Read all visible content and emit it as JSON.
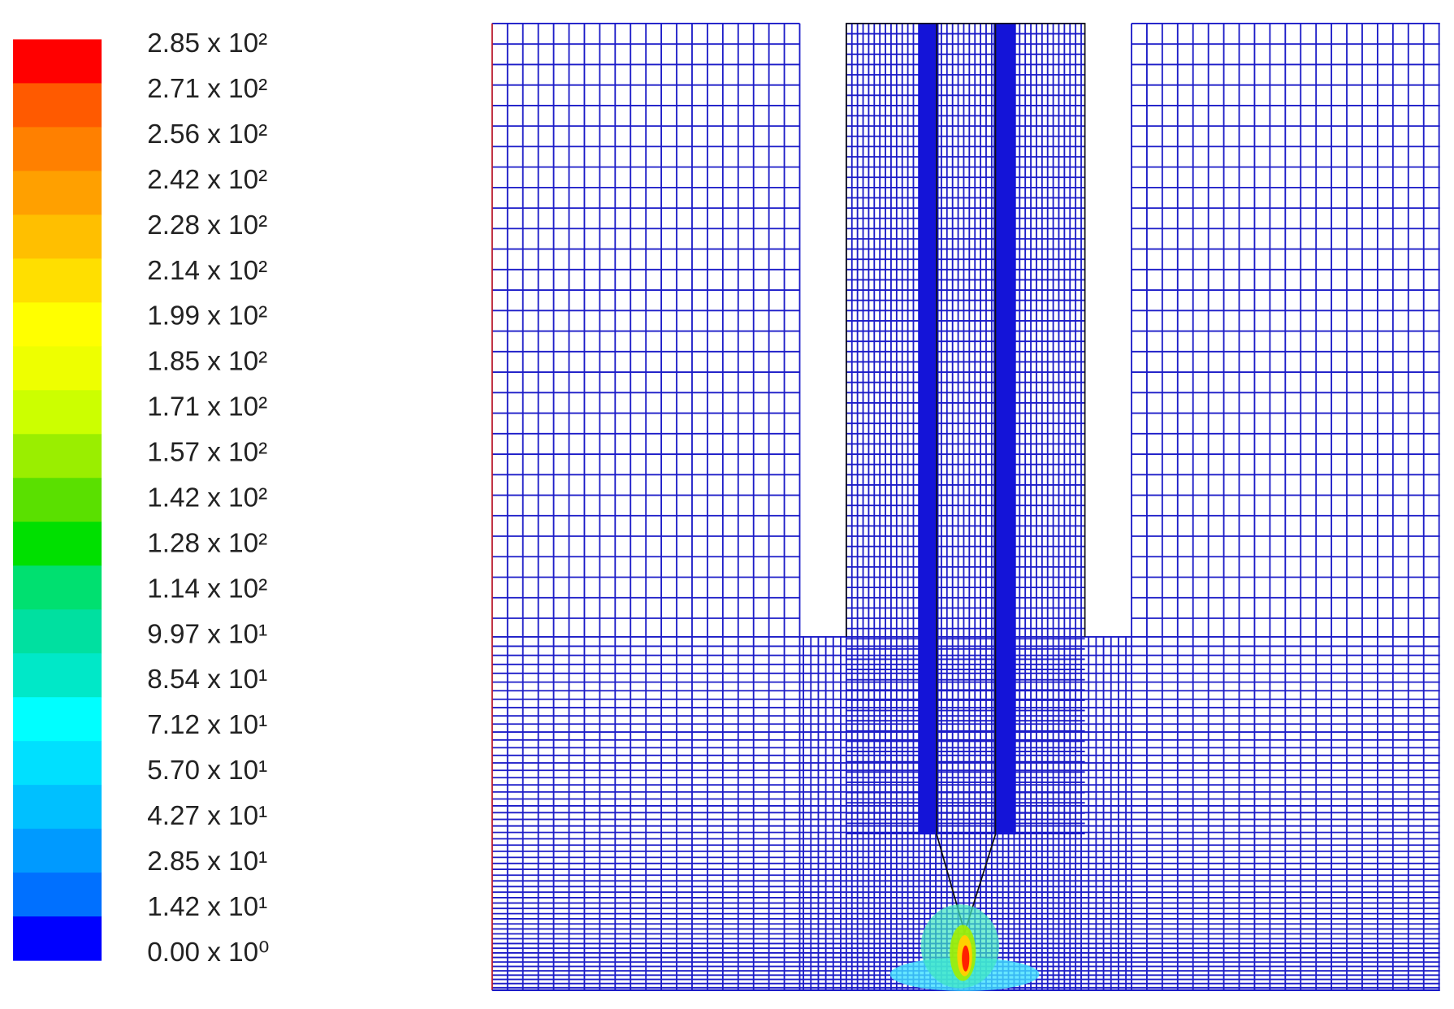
{
  "chart_data": {
    "type": "contour",
    "colorbar": {
      "ticks": [
        {
          "value": 285,
          "label": "2.85 x 10²"
        },
        {
          "value": 271,
          "label": "2.71 x 10²"
        },
        {
          "value": 256,
          "label": "2.56 x 10²"
        },
        {
          "value": 242,
          "label": "2.42 x 10²"
        },
        {
          "value": 228,
          "label": "2.28 x 10²"
        },
        {
          "value": 214,
          "label": "2.14 x 10²"
        },
        {
          "value": 199,
          "label": "1.99 x 10²"
        },
        {
          "value": 185,
          "label": "1.85 x 10²"
        },
        {
          "value": 171,
          "label": "1.71 x 10²"
        },
        {
          "value": 157,
          "label": "1.57 x 10²"
        },
        {
          "value": 142,
          "label": "1.42 x 10²"
        },
        {
          "value": 128,
          "label": "1.28 x 10²"
        },
        {
          "value": 114,
          "label": "1.14 x 10²"
        },
        {
          "value": 99.7,
          "label": "9.97 x 10¹"
        },
        {
          "value": 85.4,
          "label": "8.54 x 10¹"
        },
        {
          "value": 71.2,
          "label": "7.12 x 10¹"
        },
        {
          "value": 57.0,
          "label": "5.70 x 10¹"
        },
        {
          "value": 42.7,
          "label": "4.27 x 10¹"
        },
        {
          "value": 28.5,
          "label": "2.85 x 10¹"
        },
        {
          "value": 14.2,
          "label": "1.42 x 10¹"
        },
        {
          "value": 0,
          "label": "0.00 x 10⁰"
        }
      ],
      "colors": [
        "#ff0000",
        "#ff5a00",
        "#ff8000",
        "#ffa000",
        "#ffbf00",
        "#ffdf00",
        "#ffff00",
        "#eeff00",
        "#ccff00",
        "#9aee00",
        "#5ae000",
        "#00e000",
        "#00e070",
        "#00e0a0",
        "#00e8c8",
        "#00ffff",
        "#00e0ff",
        "#00c0ff",
        "#009aff",
        "#0070ff",
        "#0000ff"
      ]
    }
  }
}
